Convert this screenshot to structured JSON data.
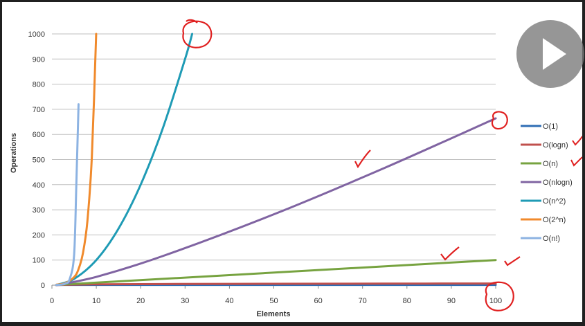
{
  "chart_data": {
    "type": "line",
    "title": "",
    "xlabel": "Elements",
    "ylabel": "Operations",
    "xlim": [
      0,
      100
    ],
    "ylim": [
      0,
      1000
    ],
    "x_ticks": [
      "0",
      "10",
      "20",
      "30",
      "40",
      "50",
      "60",
      "70",
      "80",
      "90",
      "100"
    ],
    "y_ticks": [
      "0",
      "100",
      "200",
      "300",
      "400",
      "500",
      "600",
      "700",
      "800",
      "900",
      "1000"
    ],
    "grid": true,
    "legend_position": "right",
    "series": [
      {
        "name": "O(1)",
        "color": "#2E6DB4",
        "x": [
          1,
          100
        ],
        "y": [
          1,
          1
        ]
      },
      {
        "name": "O(logn)",
        "color": "#C0504D",
        "x": [
          1,
          2,
          5,
          10,
          25,
          50,
          75,
          100
        ],
        "y": [
          0,
          1,
          2.3,
          3.3,
          4.6,
          5.6,
          6.2,
          6.6
        ]
      },
      {
        "name": "O(n)",
        "color": "#77A340",
        "x": [
          1,
          100
        ],
        "y": [
          1,
          100
        ]
      },
      {
        "name": "O(nlogn)",
        "color": "#8064A2",
        "x": [
          1,
          10,
          25,
          50,
          75,
          100
        ],
        "y": [
          0,
          33,
          116,
          282,
          467,
          664
        ]
      },
      {
        "name": "O(n^2)",
        "color": "#1F9BB5",
        "x": [
          1,
          5,
          10,
          15,
          20,
          25,
          30,
          31.6
        ],
        "y": [
          1,
          25,
          100,
          225,
          400,
          625,
          900,
          1000
        ]
      },
      {
        "name": "O(2^n)",
        "color": "#F08A2C",
        "x": [
          1,
          3,
          5,
          6,
          7,
          8,
          9,
          9.97
        ],
        "y": [
          2,
          8,
          32,
          64,
          128,
          256,
          512,
          1000
        ]
      },
      {
        "name": "O(n!)",
        "color": "#8DB3E2",
        "x": [
          1,
          2,
          3,
          4,
          5,
          5.5,
          6
        ],
        "y": [
          1,
          2,
          6,
          24,
          120,
          400,
          720
        ]
      }
    ]
  },
  "player": {
    "icon": "play-icon"
  }
}
